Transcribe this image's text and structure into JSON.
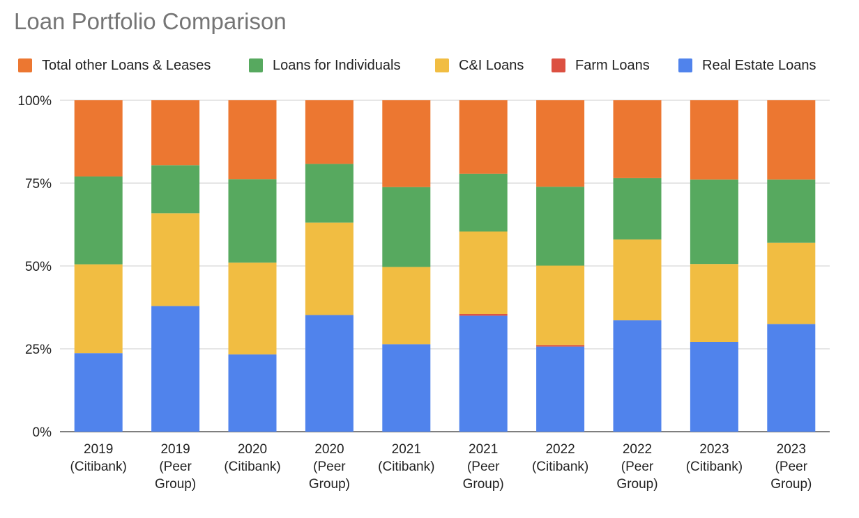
{
  "chart_data": {
    "type": "bar",
    "stacked": "percent",
    "title": "Loan Portfolio Comparison",
    "xlabel": "",
    "ylabel": "",
    "ylim": [
      0,
      100
    ],
    "yticks": [
      "0%",
      "25%",
      "50%",
      "75%",
      "100%"
    ],
    "legend_position": "top",
    "categories": [
      [
        "2019",
        "(Citibank)"
      ],
      [
        "2019",
        "(Peer",
        "Group)"
      ],
      [
        "2020",
        "(Citibank)"
      ],
      [
        "2020",
        "(Peer",
        "Group)"
      ],
      [
        "2021",
        "(Citibank)"
      ],
      [
        "2021",
        "(Peer",
        "Group)"
      ],
      [
        "2022",
        "(Citibank)"
      ],
      [
        "2022",
        "(Peer",
        "Group)"
      ],
      [
        "2023",
        "(Citibank)"
      ],
      [
        "2023",
        "(Peer",
        "Group)"
      ]
    ],
    "series": [
      {
        "name": "Real Estate Loans",
        "color": "#5083ec",
        "values": [
          23.7,
          37.9,
          23.3,
          35.2,
          26.4,
          35.0,
          25.7,
          33.6,
          27.1,
          32.5
        ]
      },
      {
        "name": "Farm Loans",
        "color": "#dc5041",
        "values": [
          0.0,
          0.0,
          0.0,
          0.0,
          0.0,
          0.5,
          0.4,
          0.0,
          0.0,
          0.0
        ]
      },
      {
        "name": "C&I Loans",
        "color": "#f1bd42",
        "values": [
          26.8,
          28.0,
          27.7,
          27.9,
          23.3,
          24.9,
          24.0,
          24.4,
          23.5,
          24.5
        ]
      },
      {
        "name": "Loans for Individuals",
        "color": "#57a95f",
        "values": [
          26.5,
          14.5,
          25.2,
          17.7,
          24.1,
          17.4,
          23.8,
          18.5,
          25.5,
          19.1
        ]
      },
      {
        "name": "Total other Loans & Leases",
        "color": "#ec7731",
        "values": [
          23.0,
          19.6,
          23.8,
          19.2,
          26.2,
          22.2,
          26.1,
          23.5,
          23.9,
          23.9
        ]
      }
    ],
    "legend_order": [
      "Total other Loans & Leases",
      "Loans for Individuals",
      "C&I Loans",
      "Farm Loans",
      "Real Estate Loans"
    ]
  }
}
